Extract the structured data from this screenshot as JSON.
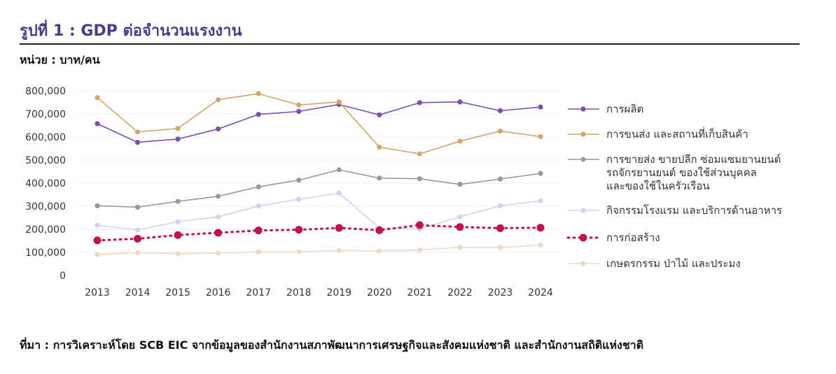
{
  "header": {
    "title": "รูปที่ 1 : GDP ต่อจำนวนแรงงาน",
    "unit": "หน่วย : บาท/คน"
  },
  "footer": {
    "source": "ที่มา : การวิเคราะห์โดย SCB EIC จากข้อมูลของสำนักงานสภาพัฒนาการเศรษฐกิจและสังคมแห่งชาติ และสำนักงานสถิติแห่งชาติ"
  },
  "chart_data": {
    "type": "line",
    "x": [
      "2013",
      "2014",
      "2015",
      "2016",
      "2017",
      "2018",
      "2019",
      "2020",
      "2021",
      "2022",
      "2023",
      "2024"
    ],
    "ylim": [
      0,
      800000
    ],
    "yticks": [
      0,
      100000,
      200000,
      300000,
      400000,
      500000,
      600000,
      700000,
      800000
    ],
    "ytick_labels": [
      "0",
      "100,000",
      "200,000",
      "300,000",
      "400,000",
      "500,000",
      "600,000",
      "700,000",
      "800,000"
    ],
    "grid": true,
    "legend_position": "right",
    "series": [
      {
        "name": "การผลิต",
        "legend_lines": [
          "การผลิต"
        ],
        "color": "#7b4fb0",
        "dash": false,
        "marker": "small",
        "values": [
          658000,
          577000,
          591000,
          635000,
          698000,
          711000,
          741000,
          696000,
          749000,
          752000,
          714000,
          730000
        ]
      },
      {
        "name": "การขนส่ง และสถานที่เก็บสินค้า",
        "legend_lines": [
          "การขนส่ง และสถานที่เก็บสินค้า"
        ],
        "color": "#d4a46a",
        "dash": false,
        "marker": "small",
        "values": [
          771000,
          622000,
          637000,
          762000,
          788000,
          739000,
          752000,
          556000,
          527000,
          582000,
          626000,
          602000
        ]
      },
      {
        "name": "การขายส่ง ขายปลีก ซ่อมแซมยานยนต์ รถจักรยานยนต์ ของใช้ส่วนบุคคล และของใช้ในครัวเรือน",
        "legend_lines": [
          "การขายส่ง ขายปลีก ซ่อมแซมยานยนต์",
          "รถจักรยานยนต์ ของใช้ส่วนบุคคล",
          "และของใช้ในครัวเรือน"
        ],
        "color": "#999999",
        "dash": false,
        "marker": "small",
        "values": [
          302000,
          296000,
          321000,
          343000,
          384000,
          413000,
          458000,
          422000,
          419000,
          395000,
          418000,
          442000
        ]
      },
      {
        "name": "กิจกรรมโรงแรม และบริการด้านอาหาร",
        "legend_lines": [
          "กิจกรรมโรงแรม และบริการด้านอาหาร"
        ],
        "color": "#d9cdf0",
        "dash": false,
        "marker": "small",
        "values": [
          217000,
          197000,
          233000,
          254000,
          301000,
          330000,
          357000,
          206000,
          201000,
          254000,
          302000,
          323000
        ]
      },
      {
        "name": "การก่อสร้าง",
        "legend_lines": [
          "การก่อสร้าง"
        ],
        "color": "#c0134a",
        "dash": true,
        "marker": "large",
        "values": [
          152000,
          159000,
          175000,
          185000,
          195000,
          198000,
          206000,
          196000,
          218000,
          210000,
          205000,
          207000
        ]
      },
      {
        "name": "เกษตรกรรม ป่าไม้ และประมง",
        "legend_lines": [
          "เกษตรกรรม ป่าไม้ และประมง"
        ],
        "color": "#ecd9c3",
        "dash": false,
        "marker": "small",
        "values": [
          90000,
          99000,
          94000,
          97000,
          102000,
          103000,
          108000,
          107000,
          110000,
          122000,
          121000,
          132000
        ]
      }
    ]
  }
}
